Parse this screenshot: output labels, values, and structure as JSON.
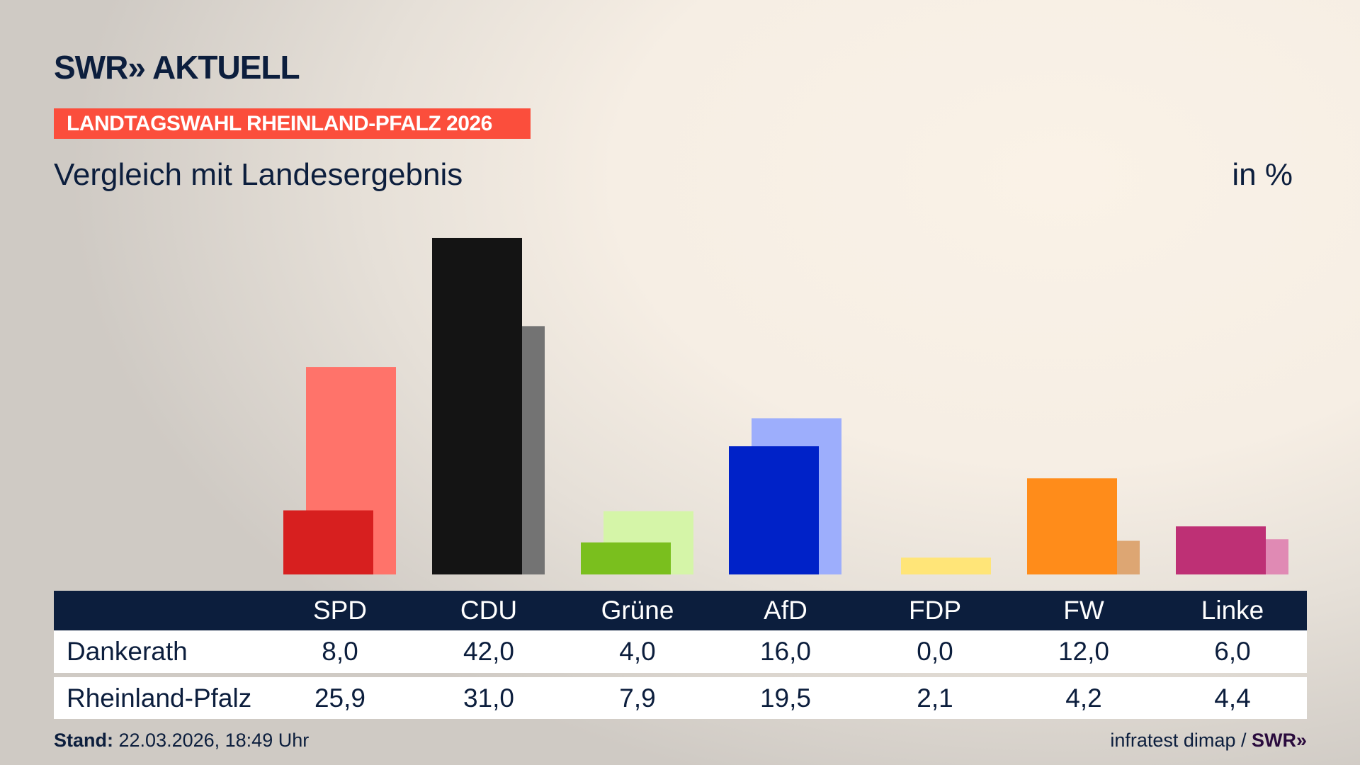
{
  "brand": {
    "logo": "SWR» AKTUELL"
  },
  "banner": "LANDTAGSWAHL RHEINLAND-PFALZ 2026",
  "subtitle": "Vergleich mit Landesergebnis",
  "unit": "in %",
  "chart_data": {
    "type": "bar",
    "title": "Vergleich mit Landesergebnis",
    "ylabel": "in %",
    "ylim": [
      0,
      42
    ],
    "categories": [
      "SPD",
      "CDU",
      "Grüne",
      "AfD",
      "FDP",
      "FW",
      "Linke"
    ],
    "series": [
      {
        "name": "Dankerath",
        "values": [
          8.0,
          42.0,
          4.0,
          16.0,
          0.0,
          12.0,
          6.0
        ],
        "display": [
          "8,0",
          "42,0",
          "4,0",
          "16,0",
          "0,0",
          "12,0",
          "6,0"
        ],
        "colors": [
          "#d71f1f",
          "#141414",
          "#7abf1e",
          "#0022c8",
          "#ffe578",
          "#ff8c1a",
          "#be3075"
        ]
      },
      {
        "name": "Rheinland-Pfalz",
        "values": [
          25.9,
          31.0,
          7.9,
          19.5,
          2.1,
          4.2,
          4.4
        ],
        "display": [
          "25,9",
          "31,0",
          "7,9",
          "19,5",
          "2,1",
          "4,2",
          "4,4"
        ],
        "colors": [
          "#ff736a",
          "#737373",
          "#d5f5a8",
          "#9daefc",
          "#ffe578",
          "#dda673",
          "#e08ab4"
        ]
      }
    ]
  },
  "footer": {
    "stand_label": "Stand:",
    "stand_value": "22.03.2026, 18:49 Uhr",
    "source": "infratest dimap /",
    "source_logo": "SWR»"
  }
}
